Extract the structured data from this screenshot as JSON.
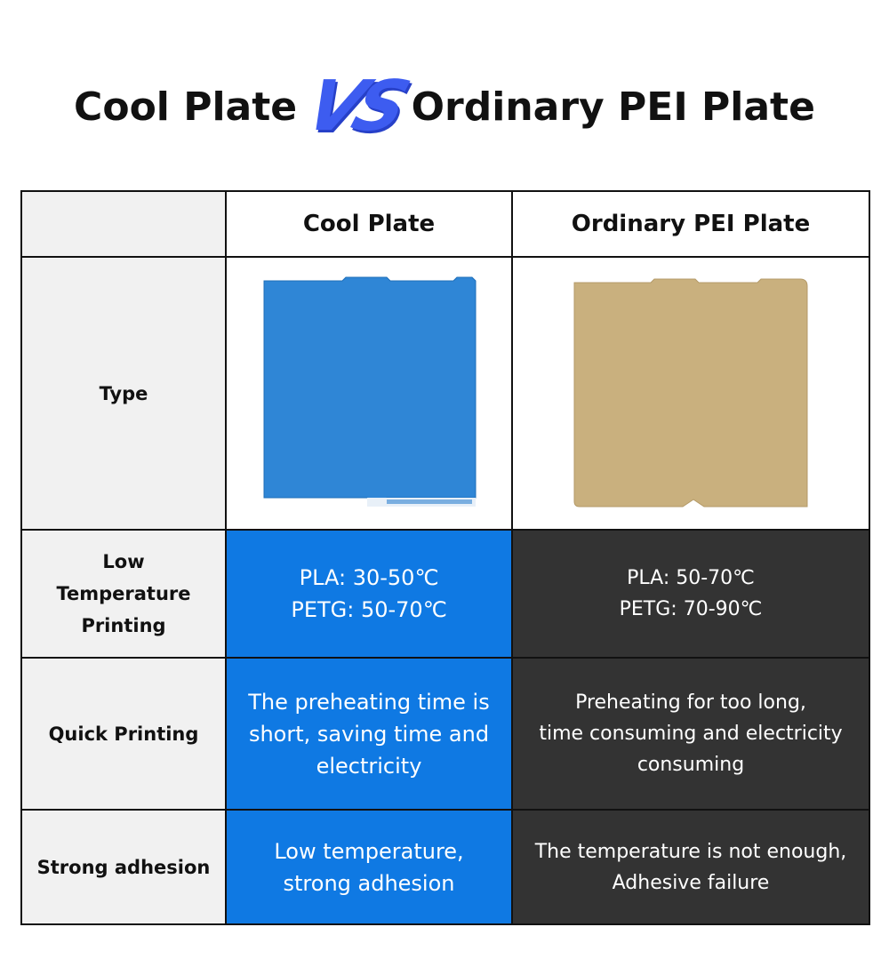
{
  "header": {
    "left": "Cool Plate",
    "vs": "VS",
    "right": "Ordinary PEI Plate"
  },
  "table": {
    "columns": [
      "Cool Plate",
      "Ordinary PEI Plate"
    ],
    "type_label": "Type",
    "rows": [
      {
        "label": [
          "Low",
          "Temperature",
          "Printing"
        ],
        "cool": [
          "PLA: 30-50℃",
          "PETG: 50-70℃"
        ],
        "pei": [
          "PLA: 50-70℃",
          "PETG: 70-90℃"
        ]
      },
      {
        "label": [
          "Quick Printing"
        ],
        "cool": [
          "The preheating time is",
          "short, saving time and",
          "electricity"
        ],
        "pei": [
          "Preheating for too long,",
          "time consuming and electricity",
          "consuming"
        ]
      },
      {
        "label": [
          "Strong adhesion"
        ],
        "cool": [
          "Low temperature,",
          "strong adhesion"
        ],
        "pei": [
          "The temperature is not enough,",
          "Adhesive failure"
        ]
      }
    ]
  }
}
